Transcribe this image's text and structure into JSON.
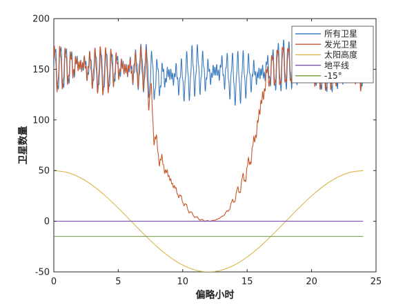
{
  "chart_data": {
    "type": "line",
    "title": "",
    "xlabel": "偏略小时",
    "ylabel": "卫星数量",
    "xlim": [
      0,
      25
    ],
    "ylim": [
      -50,
      200
    ],
    "xticks": [
      "0",
      "5",
      "10",
      "15",
      "20",
      "25"
    ],
    "yticks": [
      "-50",
      "0",
      "50",
      "100",
      "150",
      "200"
    ],
    "grid": false,
    "legend_position": "top-right",
    "series": [
      {
        "name": "所有卫星",
        "color": "#3b7bbf",
        "x": [
          0,
          1,
          2,
          3,
          4,
          5,
          6,
          7,
          7.5,
          8,
          9,
          10,
          11,
          12,
          13,
          14,
          15,
          16,
          16.5,
          17,
          18,
          19,
          20,
          21,
          22,
          23,
          24
        ],
        "y": [
          150,
          152,
          155,
          150,
          148,
          152,
          150,
          152,
          145,
          140,
          145,
          140,
          150,
          145,
          150,
          140,
          145,
          145,
          150,
          150,
          155,
          150,
          148,
          150,
          150,
          148,
          145
        ],
        "oscillation_amplitude": 22
      },
      {
        "name": "发光卫星",
        "color": "#c8562b",
        "x": [
          0,
          1,
          2,
          3,
          4,
          5,
          6,
          7,
          7.3,
          7.6,
          8,
          8.5,
          9,
          9.5,
          10,
          10.5,
          11,
          11.5,
          12,
          12.5,
          13,
          13.5,
          14,
          14.5,
          15,
          15.5,
          16,
          16.3,
          16.6,
          17,
          18,
          19,
          20,
          21,
          22,
          23,
          24
        ],
        "y": [
          150,
          152,
          155,
          150,
          148,
          152,
          150,
          152,
          140,
          110,
          70,
          55,
          42,
          30,
          20,
          10,
          4,
          1,
          0,
          1,
          4,
          10,
          22,
          35,
          50,
          75,
          110,
          130,
          145,
          150,
          155,
          150,
          148,
          150,
          150,
          148,
          145
        ],
        "oscillation_amplitude": 20
      },
      {
        "name": "太阳高度",
        "color": "#d9b64a",
        "x": [
          0,
          1,
          2,
          3,
          4,
          5,
          6,
          7,
          8,
          9,
          10,
          11,
          12,
          13,
          14,
          15,
          16,
          17,
          18,
          19,
          20,
          21,
          22,
          23,
          24
        ],
        "y": [
          50,
          48.3,
          43.3,
          35.4,
          25,
          12.9,
          0,
          -12.9,
          -25,
          -35.4,
          -43.3,
          -48.3,
          -50,
          -48.3,
          -43.3,
          -35.4,
          -25,
          -12.9,
          0,
          12.9,
          25,
          35.4,
          43.3,
          48.3,
          50
        ]
      },
      {
        "name": "地平线",
        "color": "#7b4fb8",
        "x": [
          0,
          24
        ],
        "y": [
          0,
          0
        ]
      },
      {
        "name": "-15°",
        "color": "#6f9a3a",
        "x": [
          0,
          24
        ],
        "y": [
          -15,
          -15
        ]
      }
    ]
  }
}
